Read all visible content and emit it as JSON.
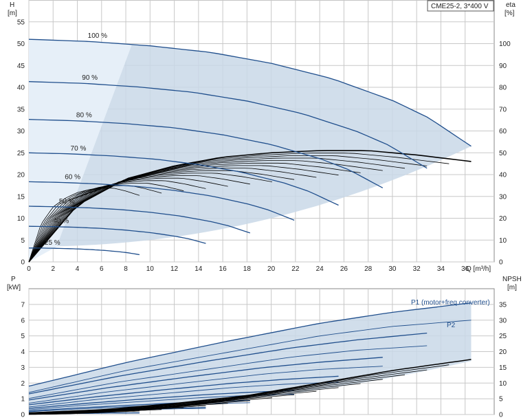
{
  "chart_data": [
    {
      "type": "line",
      "title": "CME25-2, 3*400 V",
      "ylabel": "H",
      "yunit": "[m]",
      "y2label": "eta",
      "y2unit": "[%]",
      "xlabel": "Q [m³/h]",
      "xlim": [
        0,
        38.4
      ],
      "ylim": [
        0,
        60
      ],
      "y2lim": [
        0,
        120
      ],
      "xticks": [
        0,
        2,
        4,
        6,
        8,
        10,
        12,
        14,
        16,
        18,
        20,
        22,
        24,
        26,
        28,
        30,
        32,
        34,
        36
      ],
      "yticks": [
        0,
        5,
        10,
        15,
        20,
        25,
        30,
        35,
        40,
        45,
        50,
        55
      ],
      "y2ticks": [
        0,
        10,
        20,
        30,
        40,
        50,
        60,
        70,
        80,
        90,
        100
      ],
      "grid": true,
      "head_curves": [
        {
          "label": "100 %",
          "speed": 1.0
        },
        {
          "label": "90 %",
          "speed": 0.9
        },
        {
          "label": "80 %",
          "speed": 0.8
        },
        {
          "label": "70 %",
          "speed": 0.7
        },
        {
          "label": "60 %",
          "speed": 0.6
        },
        {
          "label": "50 %",
          "speed": 0.5
        },
        {
          "label": "40 %",
          "speed": 0.4
        },
        {
          "label": "25 %",
          "speed": 0.25
        }
      ],
      "head_curve_100": {
        "x": [
          0,
          5,
          10,
          15,
          20,
          25,
          30,
          33,
          36.5
        ],
        "y": [
          51,
          50.5,
          49.5,
          48,
          45.5,
          42,
          37,
          33,
          26.5
        ]
      },
      "efficiency_curve_100": {
        "x": [
          0,
          4,
          8,
          12,
          16,
          20,
          24,
          28,
          32,
          36.5
        ],
        "y": [
          0,
          26,
          38,
          44,
          48,
          50,
          51,
          51,
          49,
          46
        ]
      },
      "colors": {
        "curve": "#1f4e8c",
        "envelope": "#c9d8e8",
        "envelope_light": "#e6eff8",
        "grid": "#c8c8c8",
        "efficiency": "#000000"
      }
    },
    {
      "type": "line",
      "ylabel": "P",
      "yunit": "[kW]",
      "y2label": "NPSH",
      "y2unit": "[m]",
      "xlim": [
        0,
        38.4
      ],
      "ylim": [
        0,
        8
      ],
      "y2lim": [
        0,
        40
      ],
      "yticks": [
        0,
        1,
        2,
        3,
        4,
        5,
        6,
        7
      ],
      "y2ticks": [
        0,
        5,
        10,
        15,
        20,
        25,
        30,
        35
      ],
      "grid": true,
      "series": [
        {
          "name": "P1 (motor+freq.converter)",
          "x": [
            0,
            8,
            16,
            24,
            30,
            36.5
          ],
          "y": [
            1.8,
            3.3,
            4.6,
            5.8,
            6.5,
            7.1
          ]
        },
        {
          "name": "P2",
          "x": [
            0,
            8,
            16,
            24,
            30,
            36.5
          ],
          "y": [
            1.4,
            2.8,
            3.9,
            5.0,
            5.6,
            6.0
          ]
        }
      ],
      "npsh_curve": {
        "x": [
          0,
          6,
          12,
          18,
          24,
          30,
          36.5
        ],
        "y": [
          0.5,
          1.5,
          3.5,
          6,
          10,
          14,
          17.5
        ]
      }
    }
  ]
}
